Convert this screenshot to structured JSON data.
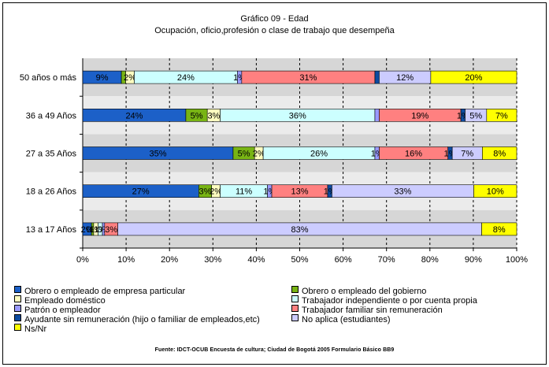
{
  "chart_data": {
    "type": "bar",
    "orientation": "horizontal",
    "stacked": "percent",
    "title": "Gráfico 09 - Edad",
    "subtitle": "Ocupación, oficio,profesión o clase de trabajo que desempeña",
    "categories": [
      "50 años o más",
      "36 a 49 Años",
      "27 a 35 Años",
      "18 a 26 Años",
      "13 a 17 Años"
    ],
    "xticks": [
      "0%",
      "10%",
      "20%",
      "30%",
      "40%",
      "50%",
      "60%",
      "70%",
      "80%",
      "90%",
      "100%"
    ],
    "xlim": [
      0,
      100
    ],
    "legend_position": "bottom",
    "series": [
      {
        "name": "Obrero o empleado de empresa particular",
        "color": "#1c60c8",
        "values": [
          9,
          24,
          35,
          27,
          2
        ],
        "labels": [
          "9%",
          "24%",
          "35%",
          "27%",
          "2%"
        ]
      },
      {
        "name": "Obrero o empleado del gobierno",
        "color": "#78b414",
        "values": [
          1,
          5,
          5,
          3,
          0.5
        ],
        "labels": [
          "",
          "5%",
          "5%",
          "3%",
          "0%"
        ]
      },
      {
        "name": "Empleado doméstico",
        "color": "#ffffc0",
        "values": [
          2,
          3,
          2,
          2,
          1
        ],
        "labels": [
          "2%",
          "3%",
          "2%",
          "2%",
          "1%"
        ]
      },
      {
        "name": "Trabajador independiente o por cuenta propia",
        "color": "#ccffff",
        "values": [
          24,
          36,
          26,
          11,
          1
        ],
        "labels": [
          "24%",
          "36%",
          "26%",
          "11%",
          "1%"
        ]
      },
      {
        "name": "Patrón o empleador",
        "color": "#9999ff",
        "values": [
          1,
          1,
          1,
          1,
          0.5
        ],
        "labels": [
          "1%",
          "",
          "1%",
          "1%",
          "0%"
        ]
      },
      {
        "name": "Trabajador familiar sin remuneración",
        "color": "#ff8080",
        "values": [
          31,
          19,
          16,
          13,
          3
        ],
        "labels": [
          "31%",
          "19%",
          "16%",
          "13%",
          "3%"
        ]
      },
      {
        "name": "Ayudante sin remuneración (hijo o familiar de empleados,etc)",
        "color": "#0d4ba0",
        "values": [
          1,
          1,
          1,
          1,
          0
        ],
        "labels": [
          "",
          "1%",
          "1%",
          "1%",
          ""
        ]
      },
      {
        "name": "No aplica (estudiantes)",
        "color": "#ccccff",
        "values": [
          12,
          5,
          7,
          33,
          83
        ],
        "labels": [
          "12%",
          "5%",
          "7%",
          "33%",
          "83%"
        ]
      },
      {
        "name": "Ns/Nr",
        "color": "#ffff00",
        "values": [
          20,
          7,
          8,
          10,
          8
        ],
        "labels": [
          "20%",
          "7%",
          "8%",
          "10%",
          "8%"
        ]
      }
    ],
    "grid": "vertical-dashed"
  },
  "source": "Fuente: IDCT-OCUB Encuesta de cultura; Ciudad de Bogotá 2005 Formulario Básico BB9"
}
